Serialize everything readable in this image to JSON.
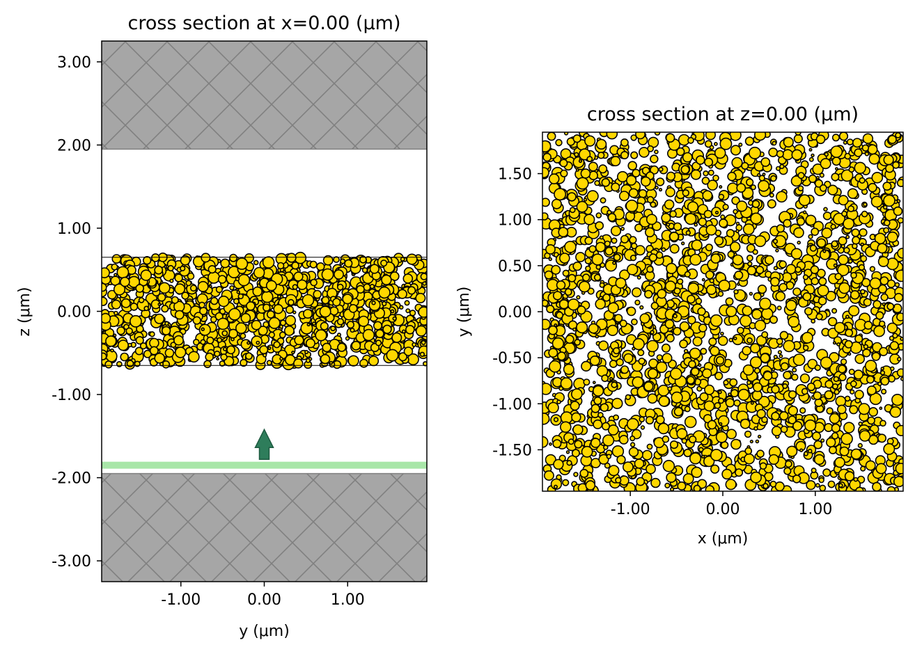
{
  "colors": {
    "pml": "#a6a6a6",
    "pml_hatch": "#808080",
    "particle_fill": "#ffd700",
    "particle_edge": "#000000",
    "source_plane": "#a8e6a8",
    "source_arrow": "#2e7d5b"
  },
  "chart_data": [
    {
      "type": "scatter",
      "title": "cross section at x=0.00 (μm)",
      "xlabel": "y (μm)",
      "ylabel": "z (μm)",
      "xlim": [
        -1.95,
        1.95
      ],
      "ylim": [
        -3.25,
        3.25
      ],
      "xticks": [
        -1.0,
        0.0,
        1.0
      ],
      "xtick_labels": [
        "-1.00",
        "0.00",
        "1.00"
      ],
      "yticks": [
        3.0,
        2.0,
        1.0,
        0.0,
        -1.0,
        -2.0,
        -3.0
      ],
      "ytick_labels": [
        "3.00",
        "2.00",
        "1.00",
        "0.00",
        "-1.00",
        "-2.00",
        "-3.00"
      ],
      "pml_regions": [
        {
          "z_min": 1.95,
          "z_max": 3.25
        },
        {
          "z_min": -3.25,
          "z_max": -1.95
        }
      ],
      "particle_layer": {
        "z_min": -0.65,
        "z_max": 0.65
      },
      "source": {
        "z": -1.85,
        "direction": "+z",
        "arrow_y": 0.0,
        "arrow_z_start": -1.78,
        "arrow_z_end": -1.42
      },
      "grid": false
    },
    {
      "type": "scatter",
      "title": "cross section at z=0.00 (μm)",
      "xlabel": "x (μm)",
      "ylabel": "y (μm)",
      "xlim": [
        -1.95,
        1.95
      ],
      "ylim": [
        -1.95,
        1.95
      ],
      "xticks": [
        -1.0,
        0.0,
        1.0
      ],
      "xtick_labels": [
        "-1.00",
        "0.00",
        "1.00"
      ],
      "yticks": [
        1.5,
        1.0,
        0.5,
        0.0,
        -0.5,
        -1.0,
        -1.5
      ],
      "ytick_labels": [
        "1.50",
        "1.00",
        "0.50",
        "0.00",
        "-0.50",
        "-1.00",
        "-1.50"
      ],
      "grid": false
    }
  ]
}
